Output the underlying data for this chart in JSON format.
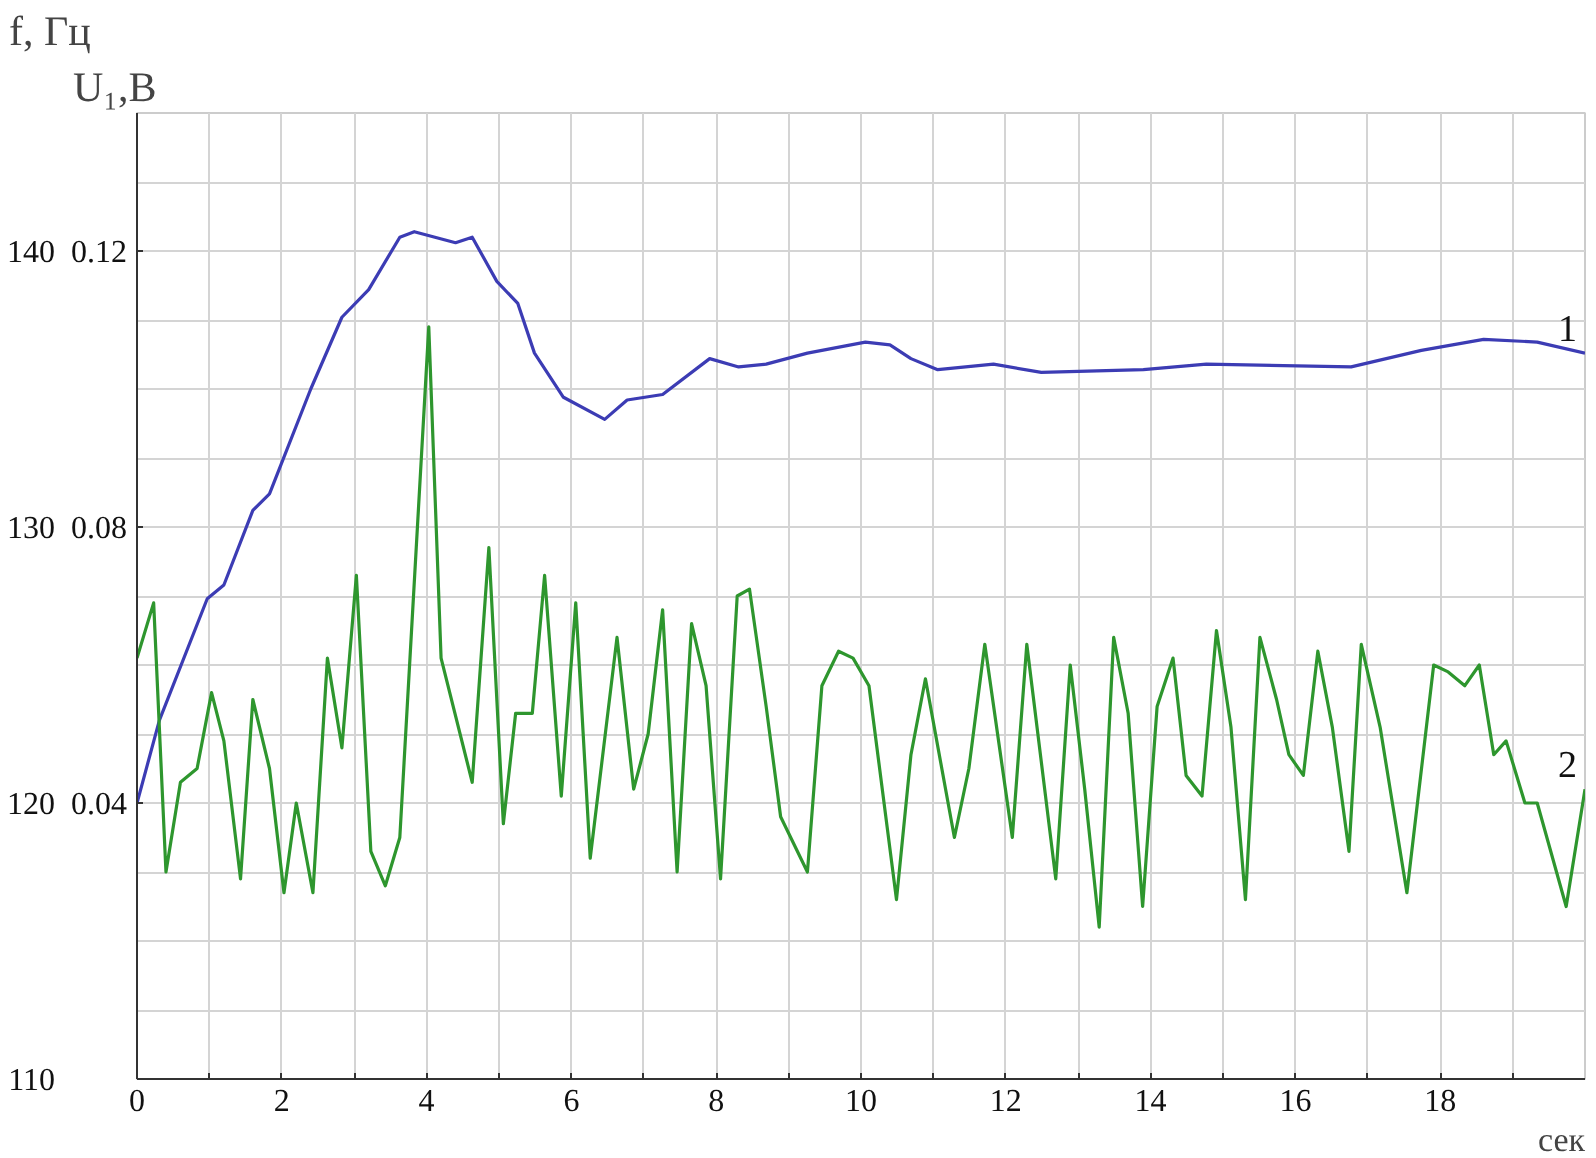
{
  "chart_data": {
    "type": "line",
    "ylabel": "f,  Гц",
    "y2label": "U₁,В",
    "xlabel": "сек",
    "xlim": [
      0,
      20
    ],
    "xticks": [
      0,
      {
        "value": 1,
        "label": null
      },
      2,
      {
        "value": 3,
        "label": null
      },
      4,
      {
        "value": 5,
        "label": null
      },
      6,
      {
        "value": 7,
        "label": null
      },
      8,
      {
        "value": 9,
        "label": null
      },
      10,
      {
        "value": 11,
        "label": null
      },
      12,
      {
        "value": 13,
        "label": null
      },
      14,
      {
        "value": 15,
        "label": null
      },
      16,
      {
        "value": 17,
        "label": null
      },
      18,
      {
        "value": 19,
        "label": null
      }
    ],
    "ylim": [
      110,
      145
    ],
    "yticks": [
      110,
      {
        "value": 112.5,
        "label": null
      },
      {
        "value": 115,
        "label": null
      },
      {
        "value": 117.5,
        "label": null
      },
      120,
      {
        "value": 122.5,
        "label": null
      },
      {
        "value": 125,
        "label": null
      },
      {
        "value": 127.5,
        "label": null
      },
      130,
      {
        "value": 132.5,
        "label": null
      },
      {
        "value": 135,
        "label": null
      },
      {
        "value": 137.5,
        "label": null
      },
      140,
      {
        "value": 142.5,
        "label": null
      }
    ],
    "y2lim": [
      0,
      0.14
    ],
    "y2ticks": [
      0.04,
      0.08,
      0.12
    ],
    "grid": true,
    "series": [
      {
        "name": "1",
        "color": "#3c3cb4",
        "x": [
          0,
          0.31,
          0.97,
          1.2,
          1.6,
          1.83,
          2.4,
          2.83,
          3.2,
          3.63,
          3.83,
          4.4,
          4.63,
          4.97,
          5.26,
          5.49,
          5.89,
          6.46,
          6.77,
          7.26,
          7.91,
          8.31,
          8.69,
          9.26,
          10.06,
          10.4,
          10.69,
          11.06,
          11.83,
          12.49,
          13.9,
          14.77,
          16.77,
          17.74,
          18.6,
          19.34,
          20
        ],
        "values": [
          120.0,
          123.0,
          127.4,
          127.9,
          130.6,
          131.2,
          135.0,
          137.6,
          138.6,
          140.5,
          140.7,
          140.3,
          140.5,
          138.9,
          138.1,
          136.3,
          134.7,
          133.9,
          134.6,
          134.8,
          136.1,
          135.8,
          135.9,
          136.3,
          136.7,
          136.6,
          136.1,
          135.7,
          135.9,
          135.6,
          135.7,
          135.9,
          135.8,
          136.4,
          136.8,
          136.7,
          136.3
        ]
      },
      {
        "name": "2",
        "color": "#2e962e",
        "axis": "y2",
        "x": [
          0,
          0.23,
          0.4,
          0.6,
          0.83,
          1.03,
          1.2,
          1.43,
          1.6,
          1.83,
          2.03,
          2.2,
          2.43,
          2.63,
          2.83,
          3.03,
          3.23,
          3.43,
          3.63,
          4.03,
          4.2,
          4.63,
          4.86,
          5.06,
          5.23,
          5.46,
          5.63,
          5.86,
          6.06,
          6.26,
          6.63,
          6.86,
          7.06,
          7.26,
          7.46,
          7.66,
          7.86,
          8.06,
          8.29,
          8.46,
          8.69,
          8.89,
          9.26,
          9.46,
          9.69,
          9.89,
          10.11,
          10.49,
          10.69,
          10.89,
          11.29,
          11.49,
          11.71,
          12.09,
          12.29,
          12.69,
          12.89,
          13.09,
          13.29,
          13.49,
          13.69,
          13.89,
          14.09,
          14.31,
          14.49,
          14.71,
          14.91,
          15.11,
          15.31,
          15.51,
          15.74,
          15.91,
          16.11,
          16.31,
          16.51,
          16.74,
          16.91,
          17.17,
          17.54,
          17.91,
          18.11,
          18.34,
          18.54,
          18.74,
          18.91,
          19.17,
          19.34,
          19.74,
          20
        ],
        "values": [
          0.061,
          0.069,
          0.03,
          0.043,
          0.045,
          0.056,
          0.049,
          0.029,
          0.055,
          0.045,
          0.027,
          0.04,
          0.027,
          0.061,
          0.048,
          0.073,
          0.033,
          0.028,
          0.035,
          0.109,
          0.061,
          0.043,
          0.077,
          0.037,
          0.053,
          0.053,
          0.073,
          0.041,
          0.069,
          0.032,
          0.064,
          0.042,
          0.05,
          0.068,
          0.03,
          0.066,
          0.057,
          0.029,
          0.07,
          0.071,
          0.054,
          0.038,
          0.03,
          0.057,
          0.062,
          0.061,
          0.057,
          0.026,
          0.047,
          0.058,
          0.035,
          0.045,
          0.063,
          0.035,
          0.063,
          0.029,
          0.06,
          0.042,
          0.022,
          0.064,
          0.053,
          0.025,
          0.054,
          0.061,
          0.044,
          0.041,
          0.065,
          0.051,
          0.026,
          0.064,
          0.055,
          0.047,
          0.044,
          0.062,
          0.051,
          0.033,
          0.063,
          0.051,
          0.027,
          0.06,
          0.059,
          0.057,
          0.06,
          0.047,
          0.049,
          0.04,
          0.04,
          0.025,
          0.042
        ]
      }
    ]
  }
}
